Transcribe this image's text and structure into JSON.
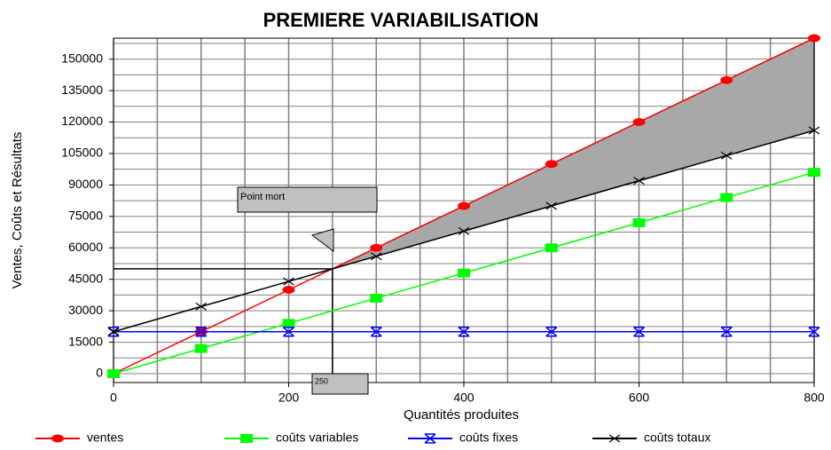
{
  "chart_data": {
    "type": "line",
    "title": "PREMIERE VARIABILISATION",
    "x_label": "Quantités produites",
    "y_label": "Ventes, Coûts et Résultats",
    "x": [
      0,
      100,
      200,
      300,
      400,
      500,
      600,
      700,
      800
    ],
    "series": [
      {
        "name": "ventes",
        "color": "#ff0000",
        "marker": "circle",
        "values": [
          0,
          20000,
          40000,
          60000,
          80000,
          100000,
          120000,
          140000,
          160000
        ]
      },
      {
        "name": "coûts variables",
        "color": "#00ff00",
        "marker": "square",
        "values": [
          0,
          12000,
          24000,
          36000,
          48000,
          60000,
          72000,
          84000,
          96000
        ]
      },
      {
        "name": "coûts fixes",
        "color": "#0000ff",
        "marker": "asterisk",
        "values": [
          20000,
          20000,
          20000,
          20000,
          20000,
          20000,
          20000,
          20000,
          20000
        ]
      },
      {
        "name": "coûts totaux",
        "color": "#000000",
        "marker": "x",
        "values": [
          20000,
          32000,
          44000,
          56000,
          68000,
          80000,
          92000,
          104000,
          116000
        ]
      }
    ],
    "xlim": [
      0,
      800
    ],
    "ylim": [
      0,
      160000
    ],
    "xticks": [
      0,
      200,
      400,
      600,
      800
    ],
    "yticks": [
      0,
      15000,
      30000,
      45000,
      60000,
      75000,
      90000,
      105000,
      120000,
      135000,
      150000
    ],
    "x_grid": [
      0,
      50,
      100,
      150,
      200,
      250,
      300,
      350,
      400,
      450,
      500,
      550,
      600,
      650,
      700,
      750,
      800
    ],
    "y_grid": [
      0,
      7500,
      15000,
      22500,
      30000,
      37500,
      45000,
      52500,
      60000,
      67500,
      75000,
      82500,
      90000,
      97500,
      105000,
      112500,
      120000,
      127500,
      135000,
      142500,
      150000,
      157500
    ],
    "grid": true,
    "legend": "bottom",
    "break_even": {
      "x": 250,
      "y": 50000,
      "label": "Point mort"
    },
    "profit_fill": "#a8a8a8"
  }
}
